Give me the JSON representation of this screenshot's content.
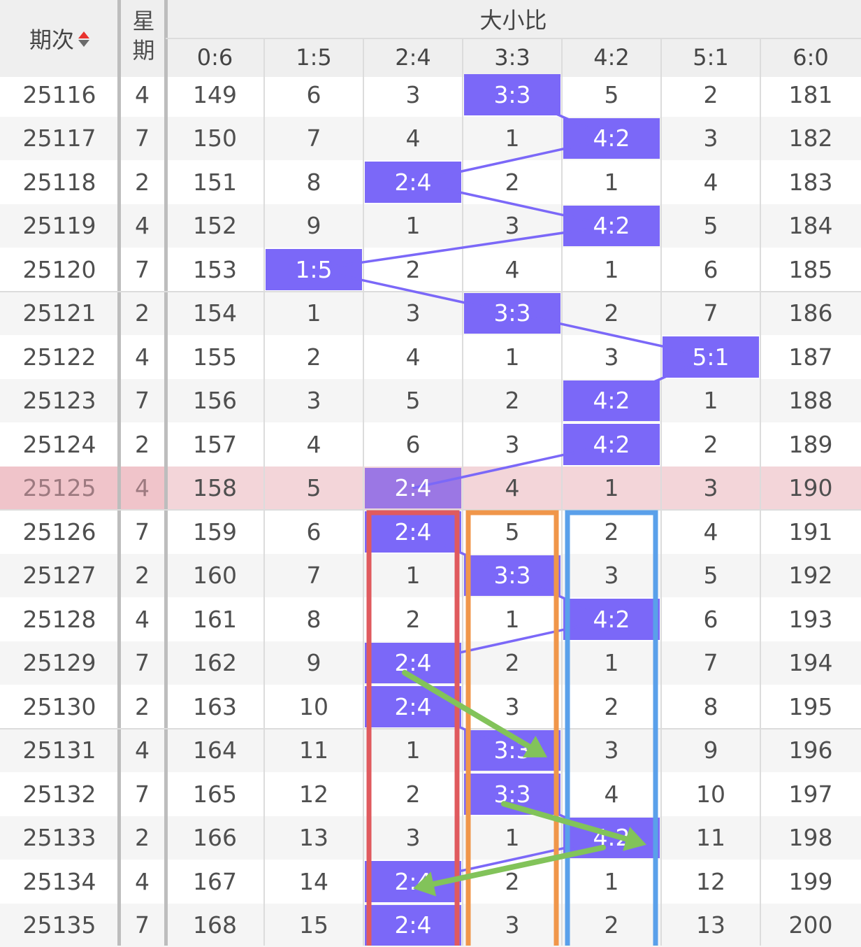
{
  "header": {
    "period_label": "期次",
    "weekday_label": "星期",
    "group_label": "大小比",
    "sort_icon": "sort-updown-icon",
    "columns": [
      "0:6",
      "1:5",
      "2:4",
      "3:3",
      "4:2",
      "5:1",
      "6:0"
    ]
  },
  "rows": [
    {
      "period": "25116",
      "weekday": "4",
      "cells": [
        "149",
        "6",
        "3",
        "3:3",
        "5",
        "2",
        "181"
      ],
      "mark": 3,
      "dark_mark": false
    },
    {
      "period": "25117",
      "weekday": "7",
      "cells": [
        "150",
        "7",
        "4",
        "1",
        "4:2",
        "3",
        "182"
      ],
      "mark": 4,
      "dark_mark": false
    },
    {
      "period": "25118",
      "weekday": "2",
      "cells": [
        "151",
        "8",
        "2:4",
        "2",
        "1",
        "4",
        "183"
      ],
      "mark": 2,
      "dark_mark": false
    },
    {
      "period": "25119",
      "weekday": "4",
      "cells": [
        "152",
        "9",
        "1",
        "3",
        "4:2",
        "5",
        "184"
      ],
      "mark": 4,
      "dark_mark": false
    },
    {
      "period": "25120",
      "weekday": "7",
      "cells": [
        "153",
        "1:5",
        "2",
        "4",
        "1",
        "6",
        "185"
      ],
      "mark": 1,
      "dark_mark": false
    },
    {
      "period": "25121",
      "weekday": "2",
      "cells": [
        "154",
        "1",
        "3",
        "3:3",
        "2",
        "7",
        "186"
      ],
      "mark": 3,
      "dark_mark": false
    },
    {
      "period": "25122",
      "weekday": "4",
      "cells": [
        "155",
        "2",
        "4",
        "1",
        "3",
        "5:1",
        "187"
      ],
      "mark": 5,
      "dark_mark": false
    },
    {
      "period": "25123",
      "weekday": "7",
      "cells": [
        "156",
        "3",
        "5",
        "2",
        "4:2",
        "1",
        "188"
      ],
      "mark": 4,
      "dark_mark": false
    },
    {
      "period": "25124",
      "weekday": "2",
      "cells": [
        "157",
        "4",
        "6",
        "3",
        "4:2",
        "2",
        "189"
      ],
      "mark": 4,
      "dark_mark": false
    },
    {
      "period": "25125",
      "weekday": "4",
      "cells": [
        "158",
        "5",
        "2:4",
        "4",
        "1",
        "3",
        "190"
      ],
      "mark": 2,
      "dark_mark": false,
      "highlight": true
    },
    {
      "period": "25126",
      "weekday": "7",
      "cells": [
        "159",
        "6",
        "2:4",
        "5",
        "2",
        "4",
        "191"
      ],
      "mark": 2,
      "dark_mark": false
    },
    {
      "period": "25127",
      "weekday": "2",
      "cells": [
        "160",
        "7",
        "1",
        "3:3",
        "3",
        "5",
        "192"
      ],
      "mark": 3,
      "dark_mark": false
    },
    {
      "period": "25128",
      "weekday": "4",
      "cells": [
        "161",
        "8",
        "2",
        "1",
        "4:2",
        "6",
        "193"
      ],
      "mark": 4,
      "dark_mark": false
    },
    {
      "period": "25129",
      "weekday": "7",
      "cells": [
        "162",
        "9",
        "2:4",
        "2",
        "1",
        "7",
        "194"
      ],
      "mark": 2,
      "dark_mark": false
    },
    {
      "period": "25130",
      "weekday": "2",
      "cells": [
        "163",
        "10",
        "2:4",
        "3",
        "2",
        "8",
        "195"
      ],
      "mark": 2,
      "dark_mark": false
    },
    {
      "period": "25131",
      "weekday": "4",
      "cells": [
        "164",
        "11",
        "1",
        "3:3",
        "3",
        "9",
        "196"
      ],
      "mark": 3,
      "dark_mark": false
    },
    {
      "period": "25132",
      "weekday": "7",
      "cells": [
        "165",
        "12",
        "2",
        "3:3",
        "4",
        "10",
        "197"
      ],
      "mark": 3,
      "dark_mark": false
    },
    {
      "period": "25133",
      "weekday": "2",
      "cells": [
        "166",
        "13",
        "3",
        "1",
        "4:2",
        "11",
        "198"
      ],
      "mark": 4,
      "dark_mark": false
    },
    {
      "period": "25134",
      "weekday": "4",
      "cells": [
        "167",
        "14",
        "2:4",
        "2",
        "1",
        "12",
        "199"
      ],
      "mark": 2,
      "dark_mark": false
    },
    {
      "period": "25135",
      "weekday": "7",
      "cells": [
        "168",
        "15",
        "2:4",
        "3",
        "2",
        "13",
        "200"
      ],
      "mark": 2,
      "dark_mark": false
    }
  ],
  "colors": {
    "mark": "#7b68f8",
    "mark_highlight": "#9b77e4",
    "trend_line": "#7b68f8",
    "highlight_row": "#f3d5d9",
    "highlight_first_cells": "#f0c4ca",
    "header_bg": "#efefef",
    "stripe": "#f5f5f5",
    "box_2_4": "#e05a5e",
    "box_3_3": "#f0964a",
    "box_4_2": "#5aa0ea",
    "arrow": "#82c35a"
  },
  "annotations": {
    "boxes": [
      {
        "name": "box-2-4-column",
        "column": 2,
        "from_row": 10,
        "to_row": 19,
        "color_key": "box_2_4"
      },
      {
        "name": "box-3-3-column",
        "column": 3,
        "from_row": 10,
        "to_row": 19,
        "color_key": "box_3_3"
      },
      {
        "name": "box-4-2-column",
        "column": 4,
        "from_row": 10,
        "to_row": 19,
        "color_key": "box_4_2"
      }
    ],
    "arrows": [
      {
        "name": "arrow-25129-to-25131",
        "from": {
          "row": 13,
          "column": 2
        },
        "to": {
          "row": 15,
          "column": 3
        }
      },
      {
        "name": "arrow-25132-to-25133",
        "from": {
          "row": 16,
          "column": 3
        },
        "to": {
          "row": 17,
          "column": 4
        }
      },
      {
        "name": "arrow-25133-to-25134",
        "from": {
          "row": 17,
          "column": 4
        },
        "to": {
          "row": 18,
          "column": 2
        }
      }
    ]
  }
}
